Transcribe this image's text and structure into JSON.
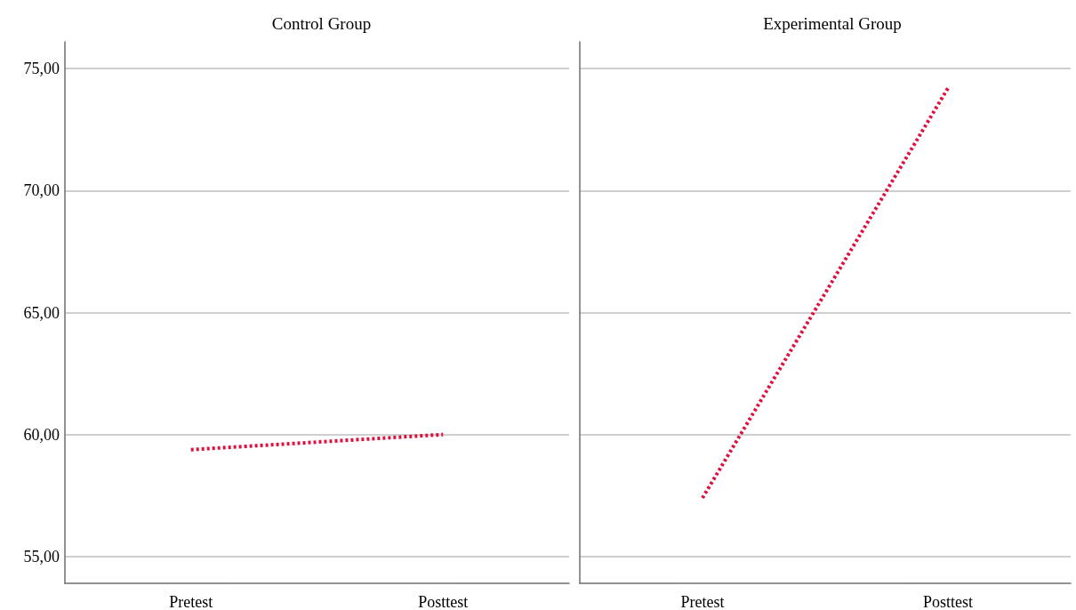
{
  "chart_data": [
    {
      "type": "line",
      "title": "Control Group",
      "categories": [
        "Pretest",
        "Posttest"
      ],
      "series": [
        {
          "color": "#e0103e",
          "values": [
            59.38,
            60.0
          ]
        }
      ],
      "ylim": [
        53.9,
        76.1
      ],
      "yticks": [
        {
          "value": 55,
          "label": "55,00"
        },
        {
          "value": 60,
          "label": "60,00"
        },
        {
          "value": 65,
          "label": "65,00"
        },
        {
          "value": 70,
          "label": "70,00"
        },
        {
          "value": 75,
          "label": "75,00"
        }
      ],
      "grid": "y",
      "line_style": "dotted",
      "marker": "none"
    },
    {
      "type": "line",
      "title": "Experimental Group",
      "categories": [
        "Pretest",
        "Posttest"
      ],
      "series": [
        {
          "color": "#e0103e",
          "values": [
            57.4,
            74.2
          ]
        }
      ],
      "ylim": [
        53.9,
        76.1
      ],
      "yticks": [
        {
          "value": 55,
          "label": null
        },
        {
          "value": 60,
          "label": null
        },
        {
          "value": 65,
          "label": null
        },
        {
          "value": 70,
          "label": null
        },
        {
          "value": 75,
          "label": null
        }
      ],
      "grid": "y",
      "line_style": "dotted",
      "marker": "none",
      "tick_labels": "x"
    }
  ]
}
